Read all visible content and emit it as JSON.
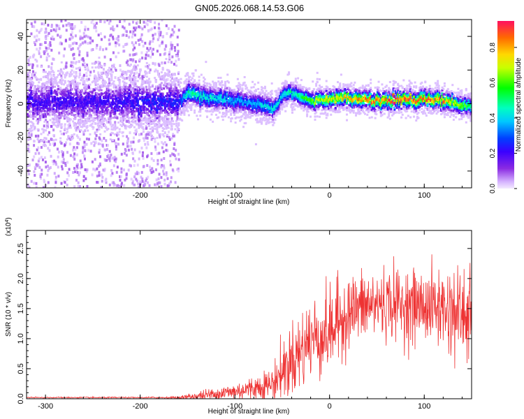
{
  "title": "GN05.2026.068.14.53.G06",
  "chart_data": [
    {
      "type": "heatmap",
      "xlabel": "Height of straight line (km)",
      "ylabel": "Frequency (Hz)",
      "xlim": [
        -320,
        150
      ],
      "ylim": [
        -50,
        50
      ],
      "x_ticks": [
        -300,
        -200,
        -100,
        0,
        100
      ],
      "y_ticks": [
        -40,
        -20,
        0,
        20,
        40
      ],
      "colorbar": {
        "label": "Normalized spectral amplitude",
        "range": [
          0,
          0.95
        ],
        "ticks": [
          0.0,
          0.2,
          0.4,
          0.6,
          0.8
        ]
      },
      "ridge": {
        "description_points_x": [
          -320,
          -240,
          -160,
          -150,
          -140,
          -120,
          -100,
          -80,
          -70,
          -60,
          -50,
          -45,
          -40,
          -30,
          -20,
          -10,
          0,
          20,
          40,
          60,
          80,
          100,
          120,
          130,
          140,
          150
        ],
        "description_points_freq": [
          1,
          1,
          1,
          6,
          5,
          3,
          2,
          0,
          -2,
          -3,
          5,
          7,
          7,
          4,
          2,
          2,
          3,
          3,
          2,
          2,
          2,
          3,
          2,
          1,
          -2,
          -1
        ],
        "description_points_amp": [
          0.2,
          0.2,
          0.25,
          0.45,
          0.45,
          0.4,
          0.35,
          0.35,
          0.4,
          0.4,
          0.4,
          0.45,
          0.45,
          0.5,
          0.6,
          0.65,
          0.7,
          0.75,
          0.8,
          0.85,
          0.85,
          0.8,
          0.8,
          0.7,
          0.6,
          0.5
        ]
      }
    },
    {
      "type": "line",
      "xlabel": "Height of straight line (km)",
      "ylabel": "SNR (10 * v/v)",
      "y_multiplier": "(x10^4)",
      "xlim": [
        -320,
        150
      ],
      "ylim": [
        0,
        2.8
      ],
      "x_ticks": [
        -300,
        -200,
        -100,
        0,
        100
      ],
      "y_ticks": [
        0.0,
        0.5,
        1.0,
        1.5,
        2.0,
        2.5
      ],
      "color": "#ee3333",
      "series": [
        {
          "x": [
            -320,
            -250,
            -200,
            -160,
            -140,
            -120,
            -100,
            -80,
            -60,
            -50,
            -40,
            -30,
            -20,
            -10,
            0,
            10,
            20,
            40,
            60,
            80,
            100,
            120,
            140,
            150
          ],
          "y": [
            0.02,
            0.02,
            0.02,
            0.02,
            0.04,
            0.08,
            0.12,
            0.18,
            0.25,
            0.45,
            0.65,
            0.8,
            1.0,
            1.05,
            1.1,
            1.3,
            1.45,
            1.55,
            1.6,
            1.55,
            1.55,
            1.5,
            1.4,
            1.35
          ],
          "spread": [
            0.005,
            0.005,
            0.005,
            0.01,
            0.04,
            0.06,
            0.08,
            0.1,
            0.15,
            0.25,
            0.3,
            0.35,
            0.35,
            0.35,
            0.35,
            0.35,
            0.3,
            0.3,
            0.3,
            0.3,
            0.3,
            0.35,
            0.4,
            0.45
          ]
        }
      ]
    }
  ]
}
